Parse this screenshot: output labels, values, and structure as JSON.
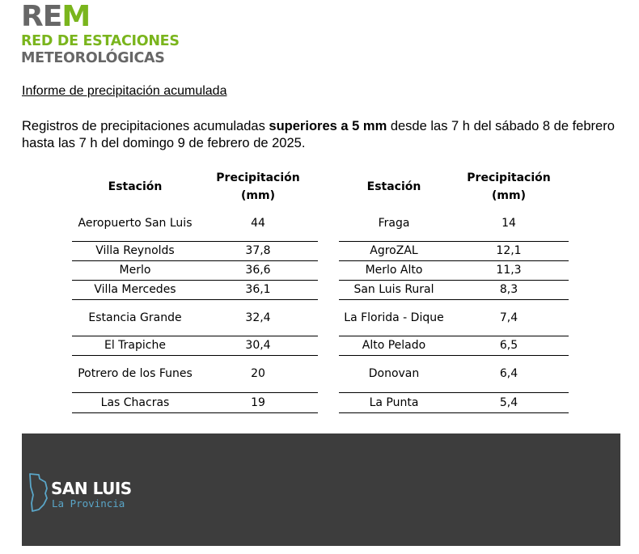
{
  "logo": {
    "rem_part1": "RE",
    "rem_part2": "M",
    "line1": "RED DE ESTACIONES",
    "line2": "METEOROLÓGICAS"
  },
  "report_title": "Informe de precipitación acumulada",
  "intro": {
    "before": "Registros de precipitaciones acumuladas ",
    "bold": "superiores a 5 mm",
    "after": " desde las 7 h del sábado 8 de febrero hasta las 7 h del domingo 9 de febrero de 2025."
  },
  "table_headers": {
    "station": "Estación",
    "precip_line1": "Precipitación",
    "precip_line2": "(mm)"
  },
  "table_left": [
    {
      "station": "Aeropuerto San Luis",
      "value": "44"
    },
    {
      "station": "Villa Reynolds",
      "value": "37,8"
    },
    {
      "station": "Merlo",
      "value": "36,6"
    },
    {
      "station": "Villa Mercedes",
      "value": "36,1"
    },
    {
      "station": "Estancia Grande",
      "value": "32,4"
    },
    {
      "station": "El Trapiche",
      "value": "30,4"
    },
    {
      "station": "Potrero de los Funes",
      "value": "20"
    },
    {
      "station": "Las Chacras",
      "value": "19"
    }
  ],
  "table_right": [
    {
      "station": "Fraga",
      "value": "14"
    },
    {
      "station": "AgroZAL",
      "value": "12,1"
    },
    {
      "station": "Merlo Alto",
      "value": "11,3"
    },
    {
      "station": "San Luis Rural",
      "value": "8,3"
    },
    {
      "station": "La Florida - Dique",
      "value": "7,4"
    },
    {
      "station": "Alto Pelado",
      "value": "6,5"
    },
    {
      "station": "Donovan",
      "value": "6,4"
    },
    {
      "station": "La Punta",
      "value": "5,4"
    }
  ],
  "footer": {
    "brand": "SAN LUIS",
    "subtitle": "La Provincia",
    "icon": "san-luis-province-outline-icon",
    "bg_color": "#3d3d3d",
    "accent_color": "#5aa6c8"
  },
  "colors": {
    "logo_green": "#7ab51d",
    "logo_gray": "#676767"
  }
}
